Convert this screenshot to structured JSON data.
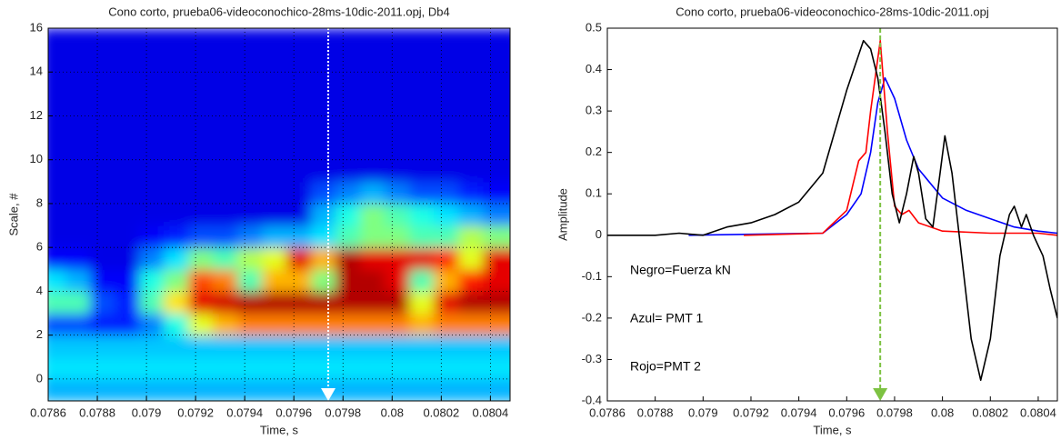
{
  "chart_data": [
    {
      "type": "heatmap",
      "title": "Cono corto, prueba06-videoconochico-28ms-10dic-2011.opj, Db4",
      "xlabel": "Time, s",
      "ylabel": "Scale, #",
      "xlim": [
        0.0786,
        0.08048
      ],
      "ylim": [
        -1,
        16
      ],
      "xticks": [
        0.0786,
        0.0788,
        0.079,
        0.0792,
        0.0794,
        0.0796,
        0.0798,
        0.08,
        0.0802,
        0.0804
      ],
      "yticks": [
        0,
        2,
        4,
        6,
        8,
        10,
        12,
        14,
        16
      ],
      "grid": true,
      "colormap": "jet",
      "marker_x": 0.07974,
      "x": [
        0.07865,
        0.07875,
        0.07885,
        0.07895,
        0.07905,
        0.07915,
        0.07925,
        0.07935,
        0.07945,
        0.07955,
        0.07965,
        0.07975,
        0.07985,
        0.07995,
        0.08005,
        0.08015,
        0.08025,
        0.08035,
        0.08045
      ],
      "y": [
        -0.5,
        0.5,
        1.5,
        2.5,
        3.5,
        4.5,
        5.5,
        6.5,
        7.5,
        8.5,
        9.5,
        10.5,
        11.5,
        12.5,
        13.5,
        14.5,
        15.5
      ],
      "z": [
        [
          0.3,
          0.3,
          0.3,
          0.3,
          0.3,
          0.3,
          0.3,
          0.3,
          0.3,
          0.3,
          0.3,
          0.3,
          0.3,
          0.3,
          0.3,
          0.3,
          0.3,
          0.3,
          0.3
        ],
        [
          0.35,
          0.35,
          0.35,
          0.35,
          0.35,
          0.35,
          0.35,
          0.35,
          0.35,
          0.35,
          0.35,
          0.35,
          0.35,
          0.35,
          0.35,
          0.35,
          0.35,
          0.35,
          0.35
        ],
        [
          0.32,
          0.32,
          0.32,
          0.32,
          0.32,
          0.32,
          0.32,
          0.32,
          0.32,
          0.32,
          0.32,
          0.32,
          0.32,
          0.32,
          0.32,
          0.32,
          0.32,
          0.32,
          0.32
        ],
        [
          0.2,
          0.2,
          0.15,
          0.15,
          0.25,
          0.4,
          0.6,
          0.7,
          0.75,
          0.75,
          0.75,
          0.75,
          0.75,
          0.75,
          0.75,
          0.7,
          0.75,
          0.75,
          0.75
        ],
        [
          0.45,
          0.45,
          0.2,
          0.15,
          0.45,
          0.65,
          0.9,
          0.92,
          0.95,
          0.95,
          0.95,
          0.95,
          0.95,
          0.95,
          0.95,
          0.6,
          0.9,
          0.95,
          0.95
        ],
        [
          0.35,
          0.3,
          0.12,
          0.12,
          0.4,
          0.5,
          0.8,
          0.75,
          0.45,
          0.7,
          0.7,
          0.5,
          0.95,
          0.95,
          0.9,
          0.45,
          0.7,
          0.85,
          0.9
        ],
        [
          0.12,
          0.12,
          0.1,
          0.1,
          0.25,
          0.35,
          0.5,
          0.45,
          0.55,
          0.6,
          0.9,
          0.7,
          0.95,
          0.9,
          0.9,
          0.9,
          0.85,
          0.6,
          0.9
        ],
        [
          0.1,
          0.1,
          0.1,
          0.1,
          0.12,
          0.15,
          0.2,
          0.2,
          0.25,
          0.3,
          0.3,
          0.35,
          0.45,
          0.5,
          0.5,
          0.45,
          0.45,
          0.55,
          0.5
        ],
        [
          0.1,
          0.1,
          0.1,
          0.1,
          0.1,
          0.1,
          0.1,
          0.1,
          0.1,
          0.1,
          0.1,
          0.3,
          0.4,
          0.5,
          0.45,
          0.4,
          0.35,
          0.3,
          0.25
        ],
        [
          0.1,
          0.1,
          0.1,
          0.1,
          0.1,
          0.1,
          0.1,
          0.1,
          0.1,
          0.1,
          0.1,
          0.2,
          0.25,
          0.3,
          0.25,
          0.2,
          0.2,
          0.15,
          0.12
        ],
        [
          0.1,
          0.1,
          0.1,
          0.1,
          0.1,
          0.1,
          0.1,
          0.1,
          0.1,
          0.1,
          0.1,
          0.1,
          0.1,
          0.1,
          0.1,
          0.1,
          0.1,
          0.1,
          0.1
        ],
        [
          0.1,
          0.1,
          0.1,
          0.1,
          0.1,
          0.1,
          0.1,
          0.1,
          0.1,
          0.1,
          0.1,
          0.1,
          0.1,
          0.1,
          0.1,
          0.1,
          0.1,
          0.1,
          0.1
        ],
        [
          0.1,
          0.1,
          0.1,
          0.1,
          0.1,
          0.1,
          0.1,
          0.1,
          0.1,
          0.1,
          0.1,
          0.1,
          0.1,
          0.1,
          0.1,
          0.1,
          0.1,
          0.1,
          0.1
        ],
        [
          0.1,
          0.1,
          0.1,
          0.1,
          0.1,
          0.1,
          0.1,
          0.1,
          0.1,
          0.1,
          0.1,
          0.1,
          0.1,
          0.1,
          0.1,
          0.1,
          0.1,
          0.1,
          0.1
        ],
        [
          0.1,
          0.1,
          0.1,
          0.1,
          0.1,
          0.1,
          0.1,
          0.1,
          0.1,
          0.1,
          0.1,
          0.1,
          0.1,
          0.1,
          0.1,
          0.1,
          0.1,
          0.1,
          0.1
        ],
        [
          0.1,
          0.1,
          0.1,
          0.1,
          0.1,
          0.1,
          0.1,
          0.1,
          0.1,
          0.1,
          0.1,
          0.1,
          0.1,
          0.1,
          0.1,
          0.1,
          0.1,
          0.1,
          0.1
        ],
        [
          0.1,
          0.1,
          0.1,
          0.1,
          0.1,
          0.1,
          0.1,
          0.1,
          0.1,
          0.1,
          0.1,
          0.1,
          0.1,
          0.1,
          0.1,
          0.1,
          0.1,
          0.1,
          0.1
        ]
      ]
    },
    {
      "type": "line",
      "title": "Cono corto, prueba06-videoconochico-28ms-10dic-2011.opj",
      "xlabel": "Time, s",
      "ylabel": "Amplitude",
      "xlim": [
        0.0786,
        0.08048
      ],
      "ylim": [
        -0.4,
        0.5
      ],
      "xticks": [
        0.0786,
        0.0788,
        0.079,
        0.0792,
        0.0794,
        0.0796,
        0.0798,
        0.08,
        0.0802,
        0.0804
      ],
      "yticks": [
        -0.4,
        -0.3,
        -0.2,
        -0.1,
        0,
        0.1,
        0.2,
        0.3,
        0.4,
        0.5
      ],
      "grid": false,
      "marker_x": 0.07974,
      "marker_color": "#7dc242",
      "annotations": [
        "Negro=Fuerza kN",
        "Azul= PMT 1",
        "Rojo=PMT 2"
      ],
      "series": [
        {
          "color": "#0000ff",
          "x": [
            0.07894,
            0.0795,
            0.0796,
            0.07966,
            0.0797,
            0.07973,
            0.07976,
            0.0798,
            0.07985,
            0.0799,
            0.08,
            0.0801,
            0.0802,
            0.0803,
            0.0804,
            0.08048
          ],
          "values": [
            0,
            0.005,
            0.05,
            0.1,
            0.2,
            0.32,
            0.38,
            0.33,
            0.23,
            0.16,
            0.09,
            0.06,
            0.04,
            0.02,
            0.01,
            0.005
          ]
        },
        {
          "color": "#ff0000",
          "x": [
            0.07917,
            0.0795,
            0.0796,
            0.07965,
            0.07968,
            0.0797,
            0.07974,
            0.07977,
            0.0798,
            0.07983,
            0.07986,
            0.0799,
            0.08,
            0.0802,
            0.0804,
            0.08048
          ],
          "values": [
            0,
            0.005,
            0.06,
            0.18,
            0.2,
            0.3,
            0.47,
            0.25,
            0.07,
            0.05,
            0.06,
            0.03,
            0.01,
            0.005,
            0.005,
            0
          ]
        },
        {
          "color": "#000000",
          "x": [
            0.0786,
            0.0788,
            0.0789,
            0.079,
            0.0791,
            0.0792,
            0.0793,
            0.0794,
            0.0795,
            0.0796,
            0.07967,
            0.0797,
            0.07973,
            0.07976,
            0.07979,
            0.07982,
            0.07985,
            0.07988,
            0.0799,
            0.07993,
            0.07996,
            0.07999,
            0.08001,
            0.08004,
            0.08008,
            0.08012,
            0.08016,
            0.0802,
            0.08024,
            0.08028,
            0.0803,
            0.08033,
            0.08035,
            0.08038,
            0.08042,
            0.08045,
            0.08048
          ],
          "values": [
            0,
            0,
            0.005,
            0,
            0.02,
            0.03,
            0.05,
            0.08,
            0.15,
            0.35,
            0.47,
            0.45,
            0.38,
            0.25,
            0.1,
            0.03,
            0.1,
            0.19,
            0.15,
            0.04,
            0.02,
            0.15,
            0.24,
            0.15,
            -0.05,
            -0.25,
            -0.35,
            -0.25,
            -0.05,
            0.05,
            0.07,
            0.02,
            0.05,
            0,
            -0.05,
            -0.13,
            -0.2
          ]
        }
      ]
    }
  ]
}
